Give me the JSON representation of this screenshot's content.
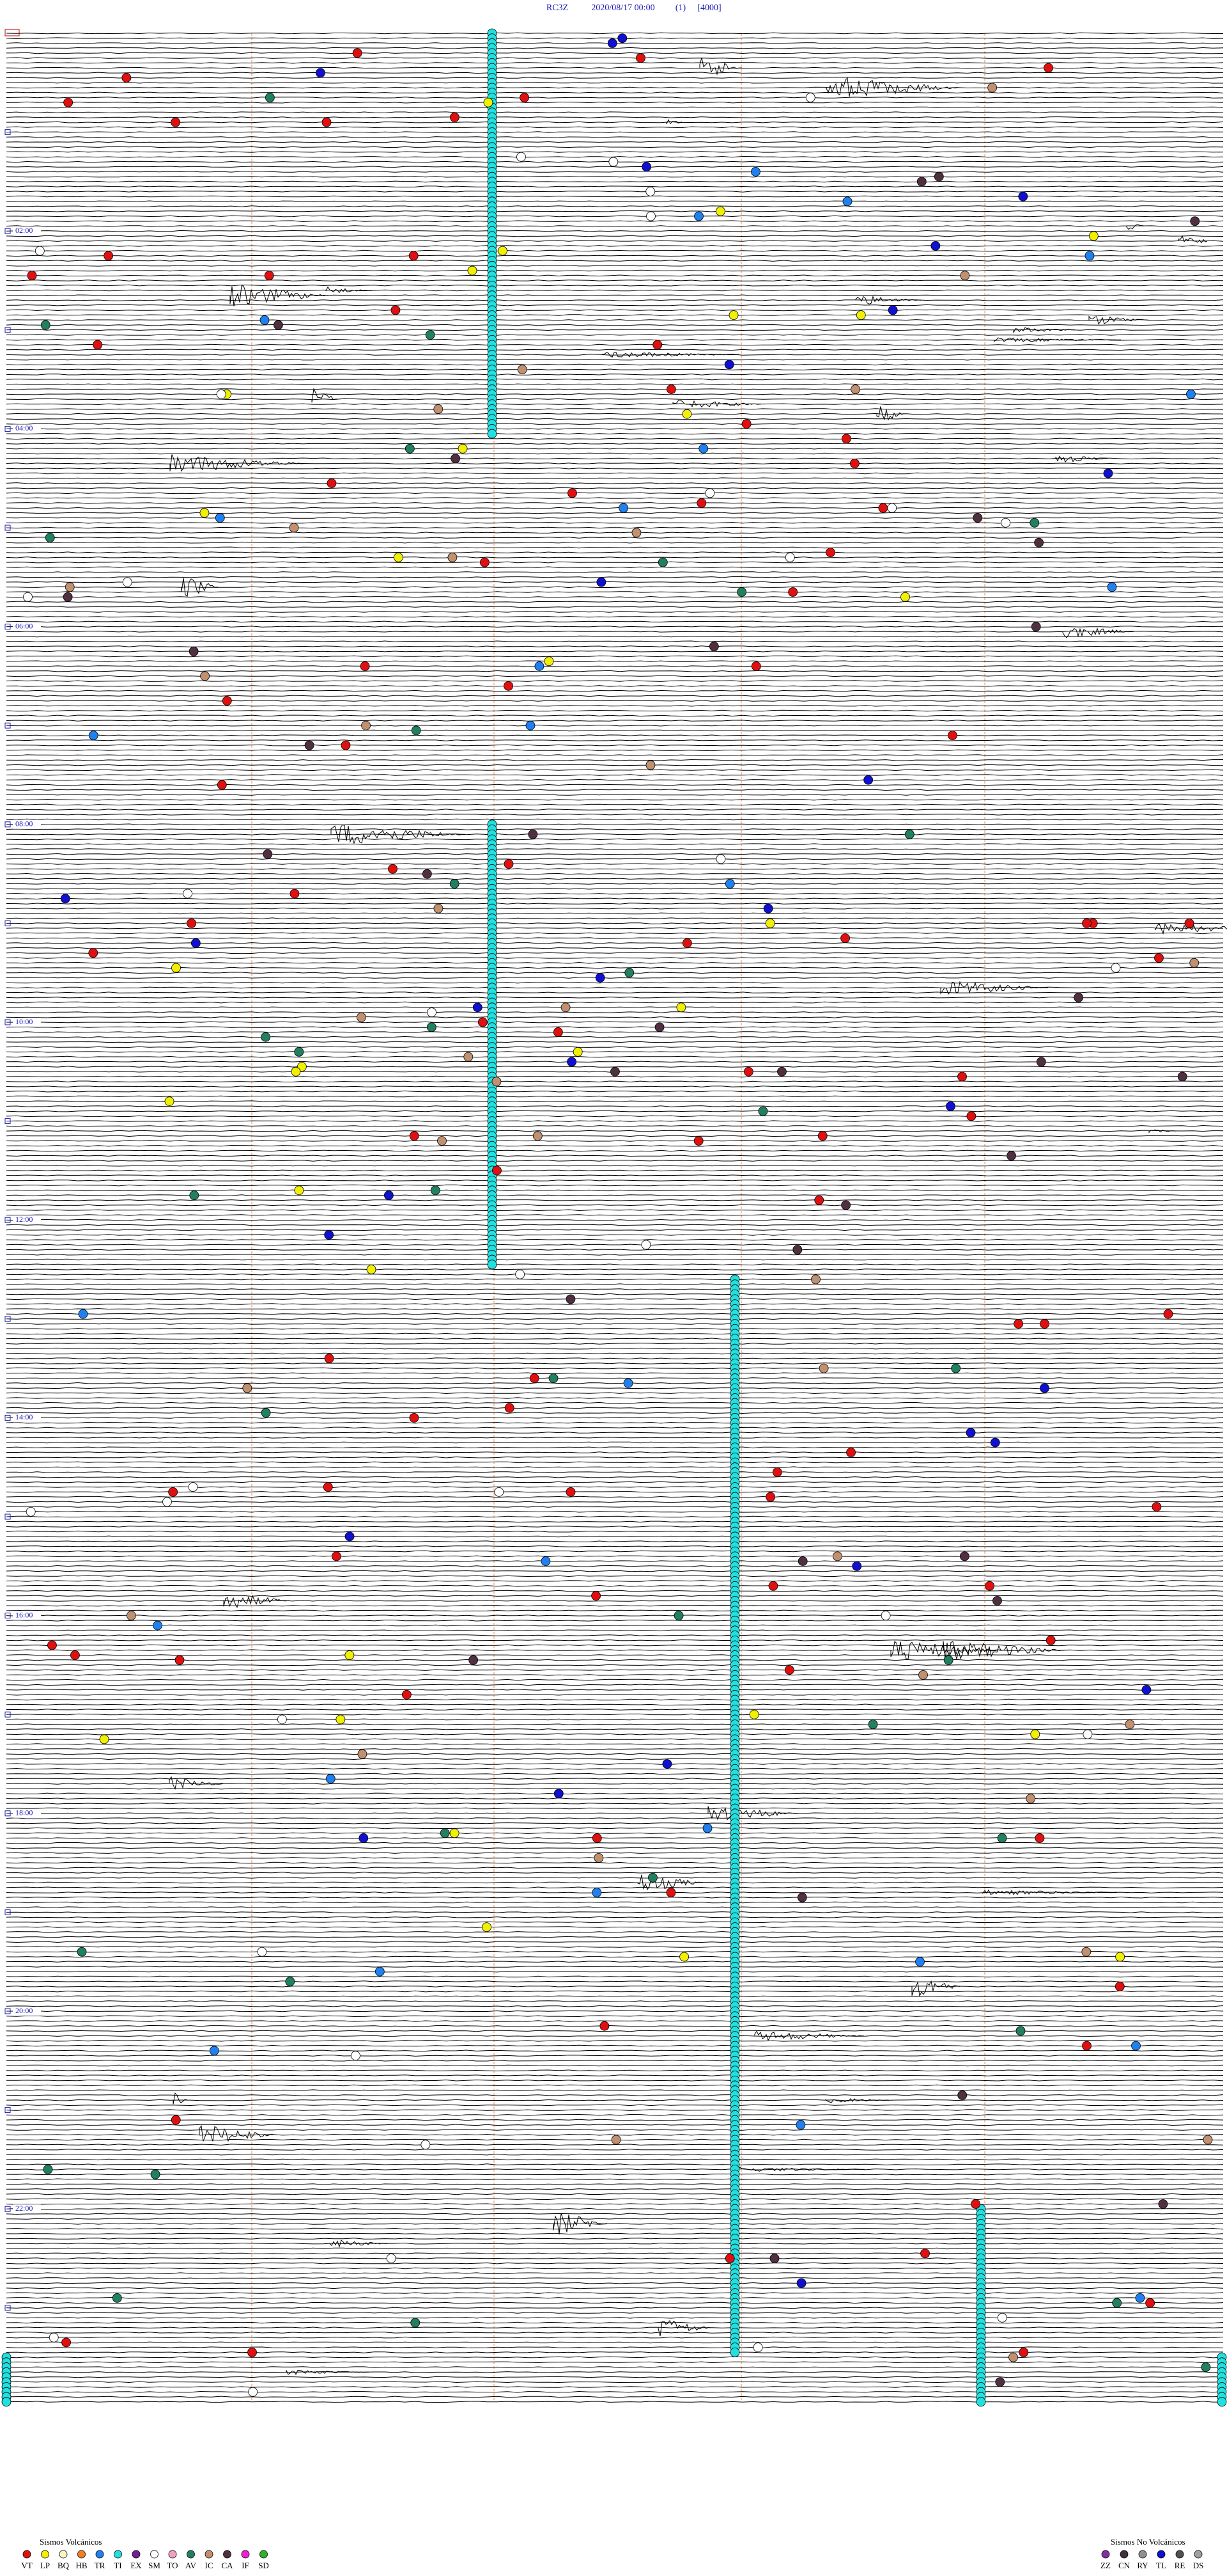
{
  "header": {
    "station": "RC3Z",
    "datetime": "2020/08/17 00:00",
    "channel": "(1)",
    "scale": "[4000]"
  },
  "time_labels": [
    "02:00",
    "04:00",
    "06:00",
    "08:00",
    "10:00",
    "12:00",
    "14:00",
    "16:00",
    "18:00",
    "20:00",
    "22:00"
  ],
  "legend_volcanic": {
    "title": "Sismos Volcánicos",
    "items": [
      {
        "code": "VT",
        "color": "#e01010"
      },
      {
        "code": "LP",
        "color": "#f0f000"
      },
      {
        "code": "BQ",
        "color": "#f8f8c0"
      },
      {
        "code": "HB",
        "color": "#f08020"
      },
      {
        "code": "TR",
        "color": "#2080f0"
      },
      {
        "code": "TI",
        "color": "#20e0e0"
      },
      {
        "code": "EX",
        "color": "#702090"
      },
      {
        "code": "SM",
        "color": "#ffffff"
      },
      {
        "code": "TO",
        "color": "#f0a0c0"
      },
      {
        "code": "AV",
        "color": "#208060"
      },
      {
        "code": "IC",
        "color": "#c09070"
      },
      {
        "code": "CA",
        "color": "#503040"
      },
      {
        "code": "IF",
        "color": "#f020d0"
      },
      {
        "code": "SD",
        "color": "#30b030"
      }
    ]
  },
  "legend_non_volcanic": {
    "title": "Sismos No Volcánicos",
    "items": [
      {
        "code": "ZZ",
        "color": "#8030a0"
      },
      {
        "code": "CN",
        "color": "#403040"
      },
      {
        "code": "RY",
        "color": "#909090"
      },
      {
        "code": "TL",
        "color": "#1010d0"
      },
      {
        "code": "RE",
        "color": "#505050"
      },
      {
        "code": "DS",
        "color": "#a0a0a0"
      }
    ]
  }
}
